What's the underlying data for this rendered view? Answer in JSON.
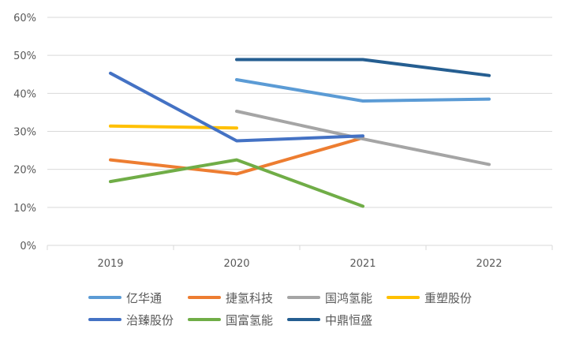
{
  "chart_data": {
    "type": "line",
    "categories": [
      "2019",
      "2020",
      "2021",
      "2022"
    ],
    "ylim": [
      0,
      60
    ],
    "yticks": [
      "0%",
      "10%",
      "20%",
      "30%",
      "40%",
      "50%",
      "60%"
    ],
    "grid": true,
    "legend_position": "bottom",
    "series": [
      {
        "name": "亿华通",
        "color": "#5B9BD5",
        "values": [
          null,
          43.6,
          38.0,
          38.5
        ]
      },
      {
        "name": "捷氢科技",
        "color": "#ED7D31",
        "values": [
          22.5,
          18.8,
          28.3,
          null
        ]
      },
      {
        "name": "国鸿氢能",
        "color": "#A5A5A5",
        "values": [
          null,
          35.3,
          28.0,
          21.3
        ]
      },
      {
        "name": "重塑股份",
        "color": "#FFC000",
        "values": [
          31.4,
          30.9,
          null,
          null
        ]
      },
      {
        "name": "治臻股份",
        "color": "#4472C4",
        "values": [
          45.3,
          27.5,
          28.8,
          null
        ]
      },
      {
        "name": "国富氢能",
        "color": "#70AD47",
        "values": [
          16.8,
          22.5,
          10.3,
          null
        ]
      },
      {
        "name": "中鼎恒盛",
        "color": "#255E91",
        "values": [
          null,
          48.9,
          48.9,
          44.7
        ]
      }
    ]
  }
}
